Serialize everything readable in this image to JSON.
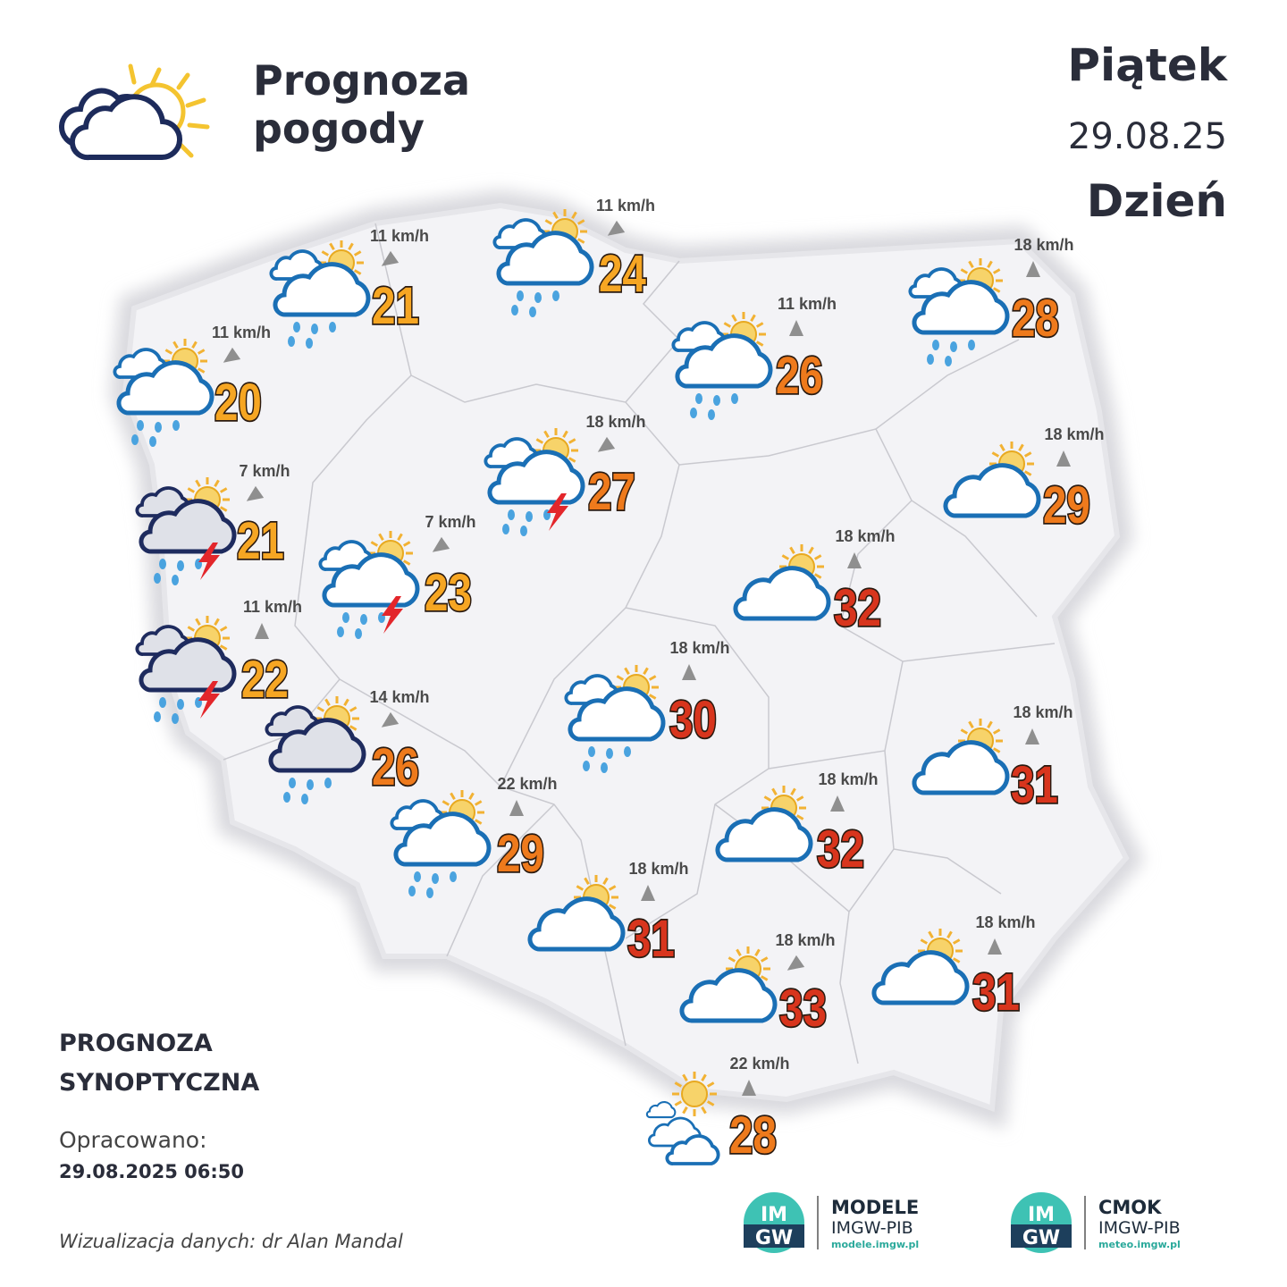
{
  "header": {
    "title_lines": [
      "Prognoza",
      "pogody"
    ],
    "day": "Piątek",
    "date": "29.08.25",
    "period": "Dzień"
  },
  "stations": [
    {
      "temperature": 21,
      "wind": "11 km/h"
    },
    {
      "temperature": 24,
      "wind": "11 km/h"
    },
    {
      "temperature": 20,
      "wind": "11 km/h"
    },
    {
      "temperature": 28,
      "wind": "18 km/h"
    },
    {
      "temperature": 26,
      "wind": "11 km/h"
    },
    {
      "temperature": 27,
      "wind": "18 km/h"
    },
    {
      "temperature": 21,
      "wind": "7 km/h"
    },
    {
      "temperature": 29,
      "wind": "18 km/h"
    },
    {
      "temperature": 23,
      "wind": "7 km/h"
    },
    {
      "temperature": 32,
      "wind": "18 km/h"
    },
    {
      "temperature": 22,
      "wind": "11 km/h"
    },
    {
      "temperature": 30,
      "wind": "18 km/h"
    },
    {
      "temperature": 26,
      "wind": "14 km/h"
    },
    {
      "temperature": 31,
      "wind": "18 km/h"
    },
    {
      "temperature": 29,
      "wind": "22 km/h"
    },
    {
      "temperature": 32,
      "wind": "18 km/h"
    },
    {
      "temperature": 31,
      "wind": "18 km/h"
    },
    {
      "temperature": 31,
      "wind": "18 km/h"
    },
    {
      "temperature": 33,
      "wind": "18 km/h"
    },
    {
      "temperature": 28,
      "wind": "22 km/h"
    }
  ],
  "footer": {
    "label_lines": [
      "PROGNOZA",
      "SYNOPTYCZNA"
    ],
    "prepared_label": "Opracowano:",
    "prepared_at": "29.08.2025 06:50",
    "credit": "Wizualizacja danych: dr Alan Mandal"
  },
  "logos": [
    {
      "mark_lines": [
        "IM",
        "GW"
      ],
      "name": "MODELE",
      "org": "IMGW-PIB",
      "url": "modele.imgw.pl"
    },
    {
      "mark_lines": [
        "IM",
        "GW"
      ],
      "name": "CMOK",
      "org": "IMGW-PIB",
      "url": "meteo.imgw.pl"
    }
  ]
}
